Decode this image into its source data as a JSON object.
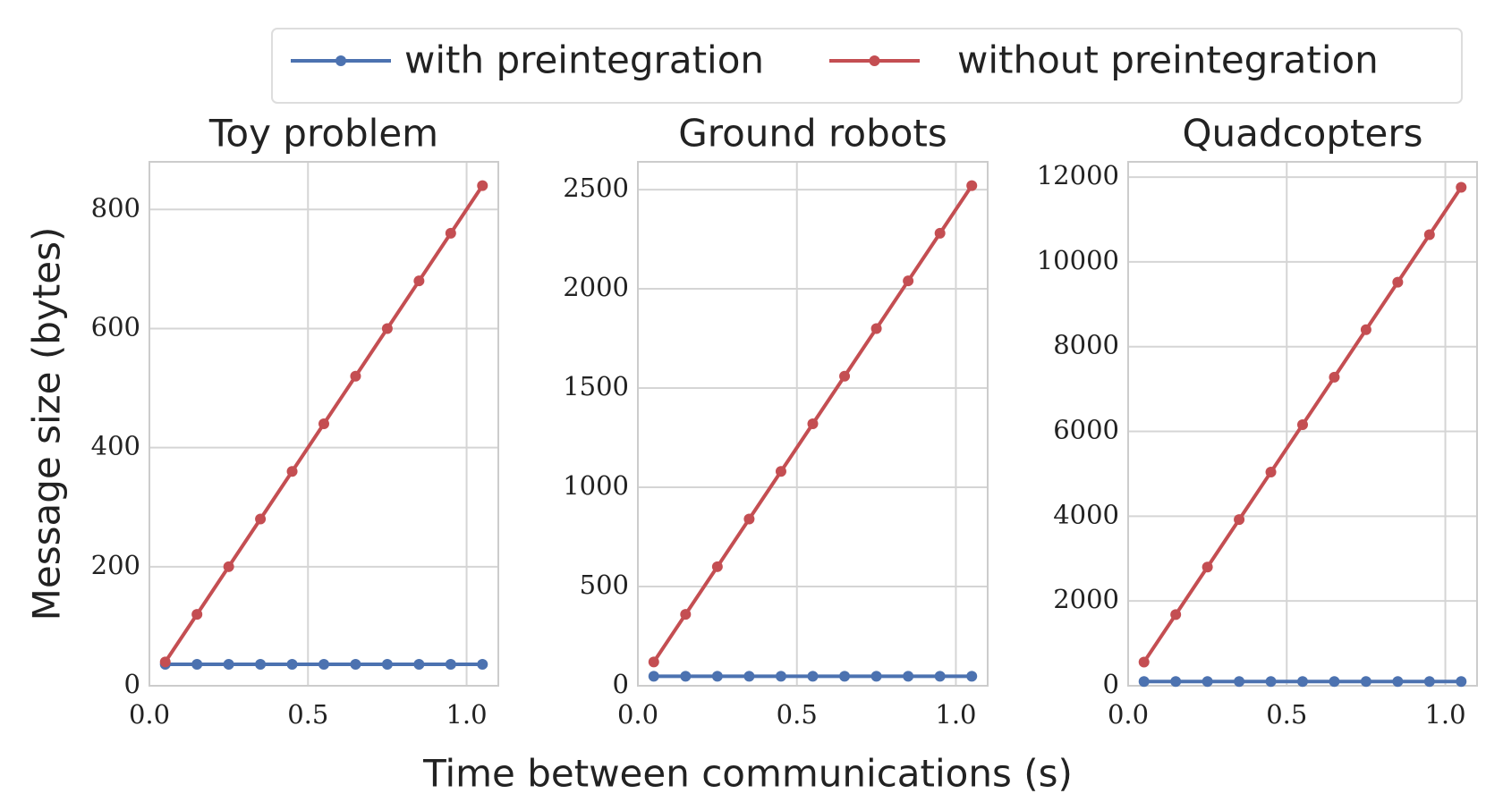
{
  "legend": [
    {
      "name": "with preintegration",
      "color": "#4c72b0"
    },
    {
      "name": "without preintegration",
      "color": "#c44e52"
    }
  ],
  "xlabel": "Time between communications (s)",
  "ylabel": "Message size (bytes)",
  "chart_data": [
    {
      "type": "line",
      "title": "Toy problem",
      "x": [
        0.05,
        0.15,
        0.25,
        0.35,
        0.45,
        0.55,
        0.65,
        0.75,
        0.85,
        0.95,
        1.05
      ],
      "series": [
        {
          "values": [
            36,
            36,
            36,
            36,
            36,
            36,
            36,
            36,
            36,
            36,
            36
          ]
        },
        {
          "values": [
            40,
            120,
            200,
            280,
            360,
            440,
            520,
            600,
            680,
            760,
            840
          ]
        }
      ],
      "xlim": [
        0,
        1.1
      ],
      "xticks": [
        {
          "value": 0,
          "label": "0.0"
        },
        0.5,
        {
          "value": 1,
          "label": "1.0"
        }
      ],
      "ylim": [
        0,
        880
      ],
      "yticks": [
        0,
        200,
        400,
        600,
        800
      ],
      "grid": true
    },
    {
      "type": "line",
      "title": "Ground robots",
      "x": [
        0.05,
        0.15,
        0.25,
        0.35,
        0.45,
        0.55,
        0.65,
        0.75,
        0.85,
        0.95,
        1.05
      ],
      "series": [
        {
          "values": [
            48,
            48,
            48,
            48,
            48,
            48,
            48,
            48,
            48,
            48,
            48
          ]
        },
        {
          "values": [
            120,
            360,
            600,
            840,
            1080,
            1320,
            1560,
            1800,
            2040,
            2280,
            2520
          ]
        }
      ],
      "xlim": [
        0,
        1.1
      ],
      "xticks": [
        {
          "value": 0,
          "label": "0.0"
        },
        0.5,
        {
          "value": 1,
          "label": "1.0"
        }
      ],
      "ylim": [
        0,
        2640
      ],
      "yticks": [
        0,
        500,
        1000,
        1500,
        2000,
        2500
      ],
      "grid": true
    },
    {
      "type": "line",
      "title": "Quadcopters",
      "x": [
        0.05,
        0.15,
        0.25,
        0.35,
        0.45,
        0.55,
        0.65,
        0.75,
        0.85,
        0.95,
        1.05
      ],
      "series": [
        {
          "values": [
            100,
            100,
            100,
            100,
            100,
            100,
            100,
            100,
            100,
            100,
            100
          ]
        },
        {
          "values": [
            560,
            1680,
            2800,
            3920,
            5040,
            6160,
            7280,
            8400,
            9520,
            10640,
            11760
          ]
        }
      ],
      "xlim": [
        0,
        1.1
      ],
      "xticks": [
        {
          "value": 0,
          "label": "0.0"
        },
        0.5,
        {
          "value": 1,
          "label": "1.0"
        }
      ],
      "ylim": [
        0,
        12360
      ],
      "yticks": [
        0,
        2000,
        4000,
        6000,
        8000,
        10000,
        12000
      ],
      "grid": true
    }
  ]
}
